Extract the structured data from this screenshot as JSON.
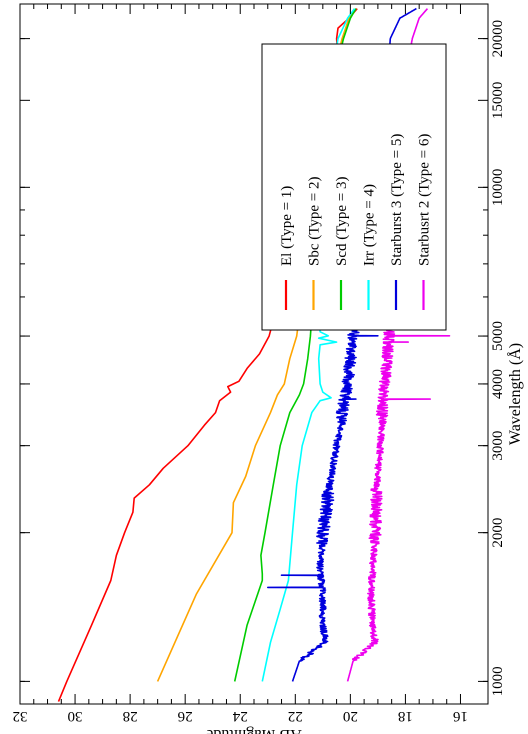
{
  "chart_data": {
    "type": "line",
    "xlabel": "Wavelength (Å)",
    "ylabel": "AB Magnitude",
    "x_scale": "log",
    "xlim": [
      900,
      23500
    ],
    "ylim": [
      32,
      15
    ],
    "y_inverted": true,
    "x_ticks": [
      1000,
      2000,
      3000,
      4000,
      5000,
      10000,
      15000,
      20000
    ],
    "x_tick_labels": [
      "1000",
      "2000",
      "3000",
      "4000",
      "5000",
      "10000",
      "15000",
      "20000"
    ],
    "y_ticks": [
      16,
      18,
      20,
      22,
      24,
      26,
      28,
      30,
      32
    ],
    "y_tick_labels": [
      "16",
      "18",
      "20",
      "22",
      "24",
      "26",
      "28",
      "30",
      "32"
    ],
    "legend_position": "top-right",
    "grid": false,
    "series": [
      {
        "name": "El (Type = 1)",
        "color": "#ff0000",
        "noisy": false,
        "points": [
          [
            910,
            30.6
          ],
          [
            1000,
            30.3
          ],
          [
            1300,
            29.4
          ],
          [
            1600,
            28.7
          ],
          [
            1800,
            28.5
          ],
          [
            2000,
            28.2
          ],
          [
            2200,
            27.9
          ],
          [
            2350,
            27.85
          ],
          [
            2500,
            27.3
          ],
          [
            2700,
            26.8
          ],
          [
            3000,
            25.9
          ],
          [
            3300,
            25.3
          ],
          [
            3500,
            24.9
          ],
          [
            3700,
            24.75
          ],
          [
            3850,
            24.35
          ],
          [
            3950,
            24.45
          ],
          [
            4050,
            24.05
          ],
          [
            4300,
            23.75
          ],
          [
            4600,
            23.3
          ],
          [
            5000,
            22.95
          ],
          [
            5500,
            22.75
          ],
          [
            6000,
            22.55
          ],
          [
            7000,
            22.2
          ],
          [
            8000,
            21.9
          ],
          [
            9000,
            21.6
          ],
          [
            10000,
            21.4
          ],
          [
            12000,
            21.25
          ],
          [
            14000,
            21.0
          ],
          [
            16000,
            20.7
          ],
          [
            18000,
            20.45
          ],
          [
            20000,
            20.5
          ],
          [
            21000,
            20.45
          ],
          [
            22000,
            20.05
          ],
          [
            23000,
            19.75
          ]
        ]
      },
      {
        "name": "Sbc (Type = 2)",
        "color": "#ffa500",
        "noisy": false,
        "points": [
          [
            1000,
            27.0
          ],
          [
            1500,
            25.6
          ],
          [
            2000,
            24.3
          ],
          [
            2300,
            24.25
          ],
          [
            2600,
            23.8
          ],
          [
            3000,
            23.45
          ],
          [
            3500,
            22.9
          ],
          [
            3800,
            22.65
          ],
          [
            4000,
            22.4
          ],
          [
            4500,
            22.2
          ],
          [
            5000,
            21.95
          ],
          [
            5500,
            21.85
          ],
          [
            6000,
            21.7
          ],
          [
            7000,
            21.6
          ],
          [
            8000,
            21.5
          ],
          [
            9000,
            21.45
          ],
          [
            10000,
            21.35
          ],
          [
            12000,
            21.15
          ],
          [
            15000,
            20.75
          ],
          [
            16500,
            20.55
          ],
          [
            18000,
            20.5
          ],
          [
            20000,
            20.3
          ],
          [
            22000,
            20.05
          ],
          [
            23000,
            19.8
          ]
        ]
      },
      {
        "name": "Scd (Type = 3)",
        "color": "#00cc00",
        "noisy": false,
        "points": [
          [
            1000,
            24.2
          ],
          [
            1300,
            23.75
          ],
          [
            1600,
            23.2
          ],
          [
            1650,
            23.2
          ],
          [
            1800,
            23.25
          ],
          [
            2000,
            23.1
          ],
          [
            2500,
            22.8
          ],
          [
            3000,
            22.55
          ],
          [
            3500,
            22.2
          ],
          [
            3800,
            21.85
          ],
          [
            4000,
            21.7
          ],
          [
            4500,
            21.55
          ],
          [
            5000,
            21.45
          ],
          [
            6000,
            21.35
          ],
          [
            7000,
            21.3
          ],
          [
            8000,
            21.25
          ],
          [
            10000,
            21.15
          ],
          [
            12000,
            20.9
          ],
          [
            15000,
            20.6
          ],
          [
            16500,
            20.45
          ],
          [
            18000,
            20.45
          ],
          [
            20000,
            20.25
          ],
          [
            22000,
            20.0
          ],
          [
            23000,
            19.8
          ]
        ]
      },
      {
        "name": "Irr (Type = 4)",
        "color": "#00ffff",
        "noisy": false,
        "points": [
          [
            1000,
            23.2
          ],
          [
            1200,
            22.9
          ],
          [
            1400,
            22.55
          ],
          [
            1600,
            22.25
          ],
          [
            2000,
            22.1
          ],
          [
            2500,
            21.95
          ],
          [
            3000,
            21.75
          ],
          [
            3500,
            21.4
          ],
          [
            3700,
            21.1
          ],
          [
            3750,
            20.7
          ],
          [
            3850,
            21.0
          ],
          [
            4000,
            21.1
          ],
          [
            4500,
            21.15
          ],
          [
            4800,
            21.1
          ],
          [
            4861,
            20.5
          ],
          [
            4950,
            21.15
          ],
          [
            5007,
            20.8
          ],
          [
            5100,
            21.1
          ],
          [
            6000,
            21.15
          ],
          [
            6563,
            20.45
          ],
          [
            6650,
            21.05
          ],
          [
            7000,
            21.05
          ],
          [
            8000,
            21.1
          ],
          [
            10000,
            21.0
          ],
          [
            12000,
            20.85
          ],
          [
            15000,
            20.55
          ],
          [
            17000,
            20.65
          ],
          [
            20000,
            20.45
          ],
          [
            22000,
            20.1
          ],
          [
            23000,
            19.85
          ]
        ]
      },
      {
        "name": "Starburst 3 (Type = 5)",
        "color": "#0000dd",
        "noisy": true,
        "spikes": [
          [
            1550,
            23.0
          ],
          [
            1640,
            22.5
          ],
          [
            3727,
            19.8
          ],
          [
            4861,
            19.9
          ],
          [
            5007,
            19.0
          ],
          [
            6563,
            18.85
          ]
        ],
        "points": [
          [
            1000,
            22.1
          ],
          [
            1100,
            21.85
          ],
          [
            1200,
            20.9
          ],
          [
            1300,
            21.0
          ],
          [
            1500,
            21.0
          ],
          [
            1700,
            21.1
          ],
          [
            2000,
            21.0
          ],
          [
            2500,
            20.75
          ],
          [
            3000,
            20.5
          ],
          [
            3500,
            20.3
          ],
          [
            4000,
            20.1
          ],
          [
            5000,
            19.9
          ],
          [
            6000,
            19.75
          ],
          [
            7000,
            19.6
          ],
          [
            8000,
            19.45
          ],
          [
            9000,
            19.25
          ],
          [
            10000,
            19.15
          ],
          [
            12000,
            19.0
          ],
          [
            15000,
            18.75
          ],
          [
            18000,
            18.6
          ],
          [
            20000,
            18.55
          ],
          [
            22000,
            18.2
          ],
          [
            23000,
            17.6
          ]
        ]
      },
      {
        "name": "Starbusrt 2 (Type = 6)",
        "color": "#ee00ee",
        "noisy": true,
        "spikes": [
          [
            3727,
            17.1
          ],
          [
            4861,
            17.9
          ],
          [
            5007,
            16.4
          ],
          [
            6563,
            16.85
          ],
          [
            6716,
            17.9
          ],
          [
            8500,
            18.2
          ],
          [
            9069,
            17.9
          ],
          [
            9532,
            17.3
          ]
        ],
        "points": [
          [
            1000,
            20.1
          ],
          [
            1100,
            19.9
          ],
          [
            1200,
            19.1
          ],
          [
            1300,
            19.2
          ],
          [
            1500,
            19.25
          ],
          [
            2000,
            19.1
          ],
          [
            2500,
            19.05
          ],
          [
            3000,
            18.9
          ],
          [
            3500,
            18.85
          ],
          [
            4000,
            18.75
          ],
          [
            5000,
            18.6
          ],
          [
            6000,
            18.55
          ],
          [
            7000,
            18.5
          ],
          [
            8000,
            18.45
          ],
          [
            9000,
            18.25
          ],
          [
            10000,
            18.15
          ],
          [
            12000,
            18.1
          ],
          [
            15000,
            17.95
          ],
          [
            18000,
            17.9
          ],
          [
            20000,
            17.75
          ],
          [
            22000,
            17.5
          ],
          [
            23000,
            17.2
          ]
        ]
      }
    ]
  }
}
